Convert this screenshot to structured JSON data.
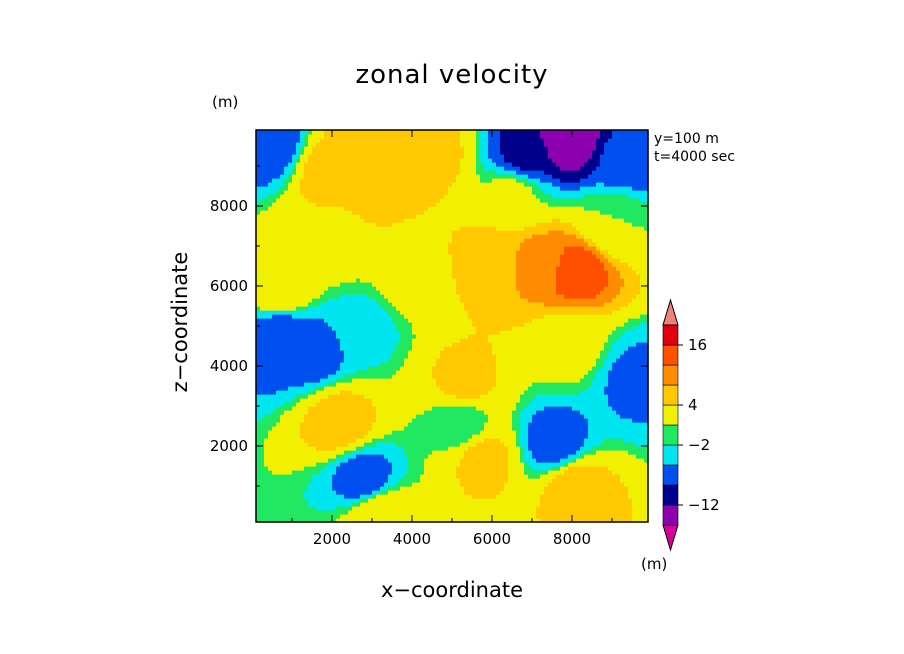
{
  "chart_data": {
    "type": "heatmap",
    "title": "zonal velocity",
    "xlabel": "x−coordinate",
    "ylabel": "z−coordinate",
    "x_unit": "(m)",
    "y_unit": "(m)",
    "colorbar_unit": "(m)",
    "annotations": [
      "y=100 m",
      "t=4000 sec"
    ],
    "xlim": [
      100,
      9900
    ],
    "ylim": [
      100,
      9900
    ],
    "x_ticks": [
      2000,
      4000,
      6000,
      8000
    ],
    "x_tick_labels": [
      "2000",
      "4000",
      "6000",
      "8000"
    ],
    "y_ticks": [
      2000,
      4000,
      6000,
      8000
    ],
    "y_tick_labels": [
      "2000",
      "4000",
      "6000",
      "8000"
    ],
    "colorbar": {
      "colors": [
        "#d80098",
        "#8c00b0",
        "#00008c",
        "#0050f0",
        "#00e6f0",
        "#20e860",
        "#f0f000",
        "#ffc800",
        "#ff8c00",
        "#ff5000",
        "#e00010",
        "#f0807c"
      ],
      "labels": [
        "−12",
        "−2",
        "4",
        "16"
      ],
      "label_boundaries": [
        2,
        5,
        7,
        10
      ]
    },
    "centers": [
      {
        "x": 2000,
        "z": 8900,
        "v": 6
      },
      {
        "x": 3000,
        "z": 8700,
        "v": 6
      },
      {
        "x": 4500,
        "z": 9300,
        "v": 5
      },
      {
        "x": 3500,
        "z": 9700,
        "v": 5
      },
      {
        "x": 7900,
        "z": 9700,
        "v": -16
      },
      {
        "x": 6800,
        "z": 9300,
        "v": -9
      },
      {
        "x": 9300,
        "z": 9200,
        "v": -7
      },
      {
        "x": 400,
        "z": 9600,
        "v": -8
      },
      {
        "x": 8100,
        "z": 6400,
        "v": 12
      },
      {
        "x": 7200,
        "z": 6600,
        "v": 8
      },
      {
        "x": 6000,
        "z": 6600,
        "v": 6
      },
      {
        "x": 700,
        "z": 6000,
        "v": 4
      },
      {
        "x": 4000,
        "z": 6200,
        "v": 2
      },
      {
        "x": 1500,
        "z": 4400,
        "v": -7
      },
      {
        "x": 700,
        "z": 4700,
        "v": -8
      },
      {
        "x": 2800,
        "z": 5000,
        "v": -3
      },
      {
        "x": 9600,
        "z": 3700,
        "v": -6
      },
      {
        "x": 5200,
        "z": 2600,
        "v": -2
      },
      {
        "x": 7600,
        "z": 2100,
        "v": -7
      },
      {
        "x": 2800,
        "z": 1200,
        "v": -7
      },
      {
        "x": 5300,
        "z": 3600,
        "v": 5
      },
      {
        "x": 2200,
        "z": 2600,
        "v": 6
      },
      {
        "x": 5800,
        "z": 1700,
        "v": 5
      },
      {
        "x": 8100,
        "z": 1000,
        "v": 6
      },
      {
        "x": 3200,
        "z": 300,
        "v": 4
      },
      {
        "x": 8000,
        "z": 4500,
        "v": 1
      },
      {
        "x": 6500,
        "z": 8300,
        "v": 1
      },
      {
        "x": 2000,
        "z": 7300,
        "v": 3
      },
      {
        "x": 9000,
        "z": 7600,
        "v": 0
      }
    ]
  }
}
